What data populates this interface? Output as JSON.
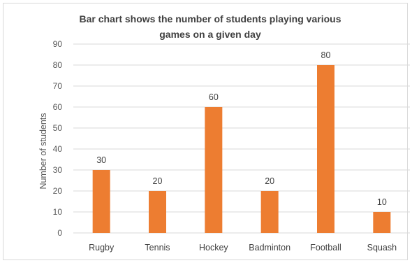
{
  "chart_data": {
    "type": "bar",
    "title_line1": "Bar chart shows the number of students playing various",
    "title_line2": "games on a given day",
    "xlabel": "",
    "ylabel": "Number of students",
    "categories": [
      "Rugby",
      "Tennis",
      "Hockey",
      "Badminton",
      "Football",
      "Squash"
    ],
    "values": [
      30,
      20,
      60,
      20,
      80,
      10
    ],
    "ylim": [
      0,
      90
    ],
    "ytick_step": 10,
    "grid": true,
    "legend": "none",
    "bar_color": "#ED7D31"
  }
}
